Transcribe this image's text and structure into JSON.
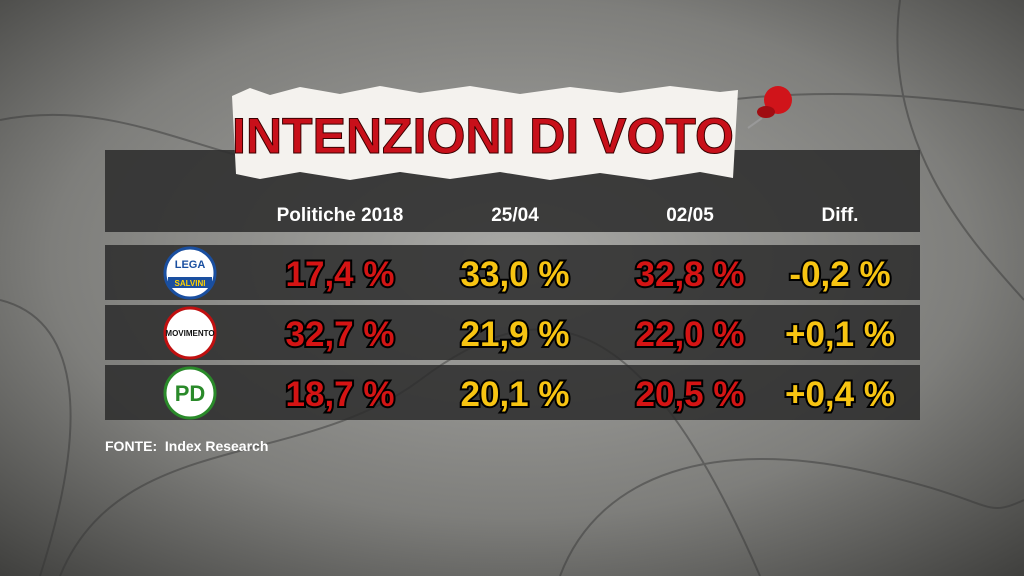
{
  "title": "INTENZIONI DI VOTO",
  "table": {
    "header": [
      "Politiche 2018",
      "25/04",
      "02/05",
      "Diff."
    ],
    "rows": [
      {
        "logo": [
          "LEGA",
          "SALVINI"
        ],
        "cells": [
          "17,4 %",
          "33,0 %",
          "32,8 %",
          "-0,2 %"
        ]
      },
      {
        "logo": [
          "MOVIMENTO"
        ],
        "cells": [
          "32,7 %",
          "21,9 %",
          "22,0 %",
          "+0,1 %"
        ]
      },
      {
        "logo": [
          "PD"
        ],
        "cells": [
          "18,7 %",
          "20,1 %",
          "20,5 %",
          "+0,4 %"
        ]
      }
    ]
  },
  "source": "FONTE:  Index Research"
}
